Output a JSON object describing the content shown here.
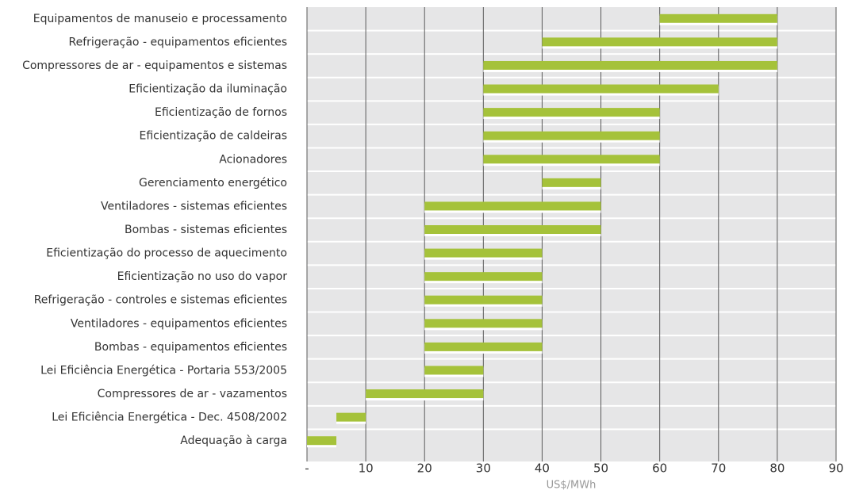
{
  "chart_data": {
    "type": "range_bar",
    "x_label": "US$/MWh",
    "categories": [
      "Equipamentos de manuseio e processamento",
      "Refrigeração - equipamentos eficientes",
      "Compressores de ar - equipamentos e sistemas",
      "Eficientização da iluminação",
      "Eficientização de fornos",
      "Eficientização de caldeiras",
      "Acionadores",
      "Gerenciamento energético",
      "Ventiladores - sistemas eficientes",
      "Bombas - sistemas eficientes",
      "Eficientização do processo de aquecimento",
      "Eficientização no uso do vapor",
      "Refrigeração - controles e sistemas eficientes",
      "Ventiladores - equipamentos eficientes",
      "Bombas - equipamentos eficientes",
      "Lei Eficiência Energética - Portaria 553/2005",
      "Compressores de ar - vazamentos",
      "Lei Eficiência Energética - Dec. 4508/2002",
      "Adequação à carga"
    ],
    "starts": [
      60,
      40,
      30,
      30,
      30,
      30,
      30,
      40,
      20,
      20,
      20,
      20,
      20,
      20,
      20,
      20,
      10,
      5,
      0
    ],
    "ends": [
      80,
      80,
      80,
      70,
      60,
      60,
      60,
      50,
      50,
      50,
      40,
      40,
      40,
      40,
      40,
      30,
      30,
      10,
      5
    ],
    "color": "#a5c23a",
    "xlim": [
      0,
      90
    ],
    "xticks": [
      {
        "value": 0,
        "label": "-"
      },
      10,
      20,
      30,
      40,
      50,
      60,
      70,
      80,
      90
    ],
    "grid": true
  }
}
